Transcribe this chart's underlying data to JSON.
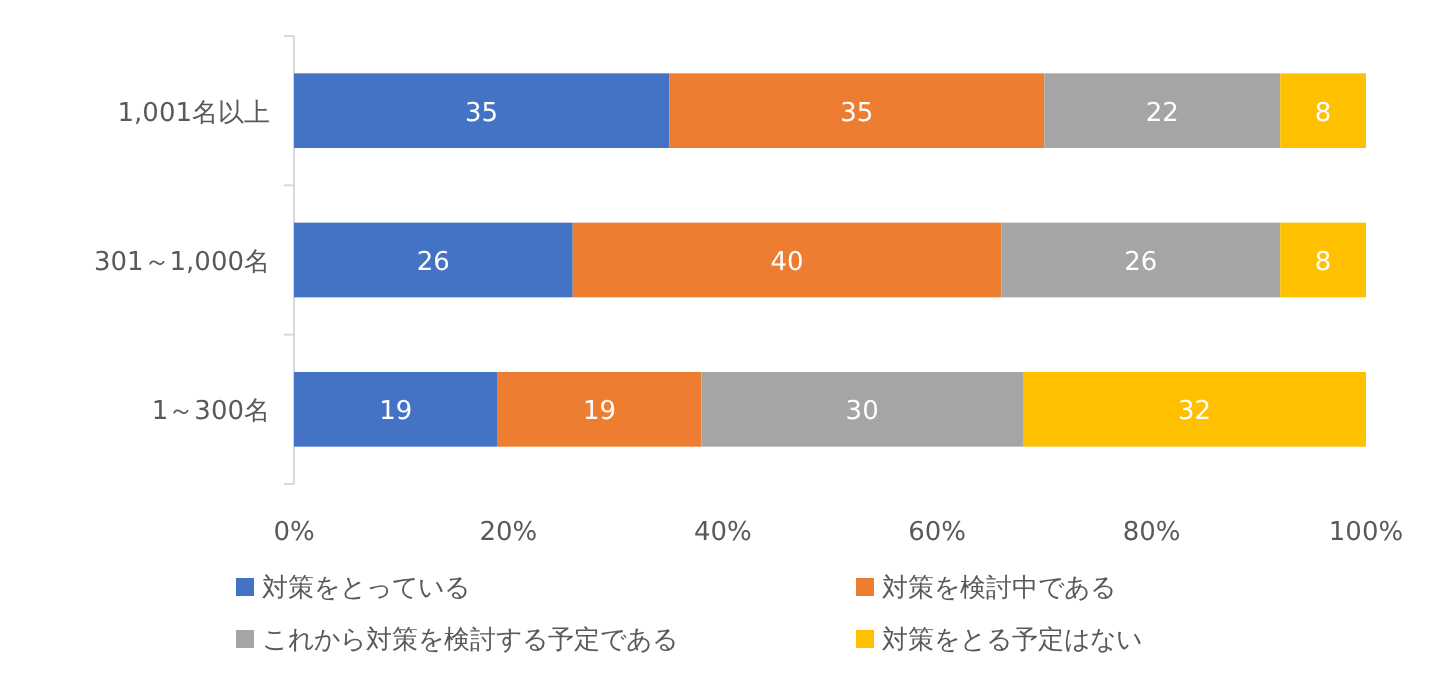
{
  "chart_data": {
    "type": "bar",
    "orientation": "horizontal",
    "stacked": true,
    "data_labels": true,
    "grid": false,
    "legend": "bottom",
    "categories": [
      "1,001名以上",
      "301～1,000名",
      "1～300名"
    ],
    "series": [
      {
        "name": "対策をとっている",
        "color": "#4472c4",
        "values": [
          35,
          26,
          19
        ]
      },
      {
        "name": "対策を検討中である",
        "color": "#ed7d31",
        "values": [
          35,
          40,
          19
        ]
      },
      {
        "name": "これから対策を検討する予定である",
        "color": "#a5a5a5",
        "values": [
          22,
          26,
          30
        ]
      },
      {
        "name": "対策をとる予定はない",
        "color": "#ffc000",
        "values": [
          8,
          8,
          32
        ]
      }
    ],
    "xlim": [
      0,
      100
    ],
    "xticks": [
      {
        "value": 0,
        "label": "0%"
      },
      {
        "value": 20,
        "label": "20%"
      },
      {
        "value": 40,
        "label": "40%"
      },
      {
        "value": 60,
        "label": "60%"
      },
      {
        "value": 80,
        "label": "80%"
      },
      {
        "value": 100,
        "label": "100%"
      }
    ]
  }
}
